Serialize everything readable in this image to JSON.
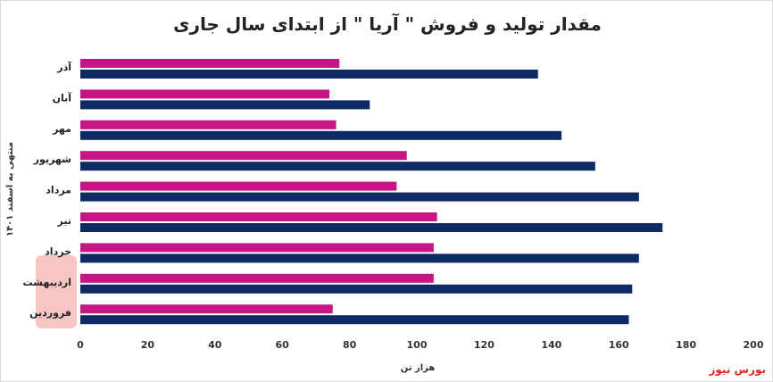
{
  "chart_data": {
    "type": "bar",
    "orientation": "horizontal",
    "title": "مقدار تولید و فروش \" آریا \" از ابتدای سال جاری",
    "xlabel": "هزار تن",
    "ylabel": "منتهی به اسفند ۱۴۰۱",
    "xlim": [
      0,
      200
    ],
    "xticks": [
      "0",
      "20",
      "40",
      "60",
      "80",
      "100",
      "120",
      "140",
      "160",
      "180",
      "200"
    ],
    "categories": [
      "آذر",
      "آبان",
      "مهر",
      "شهریور",
      "مرداد",
      "تیر",
      "خرداد",
      "اردیبهشت",
      "فروردین"
    ],
    "series": [
      {
        "color": "#c71585",
        "values": [
          77,
          74,
          76,
          97,
          94,
          106,
          105,
          105,
          75
        ]
      },
      {
        "color": "#0e2a63",
        "values": [
          136,
          86,
          143,
          153,
          166,
          173,
          166,
          164,
          163
        ]
      }
    ],
    "grid": false,
    "legend": "none"
  },
  "brand": "بورس نیوز"
}
